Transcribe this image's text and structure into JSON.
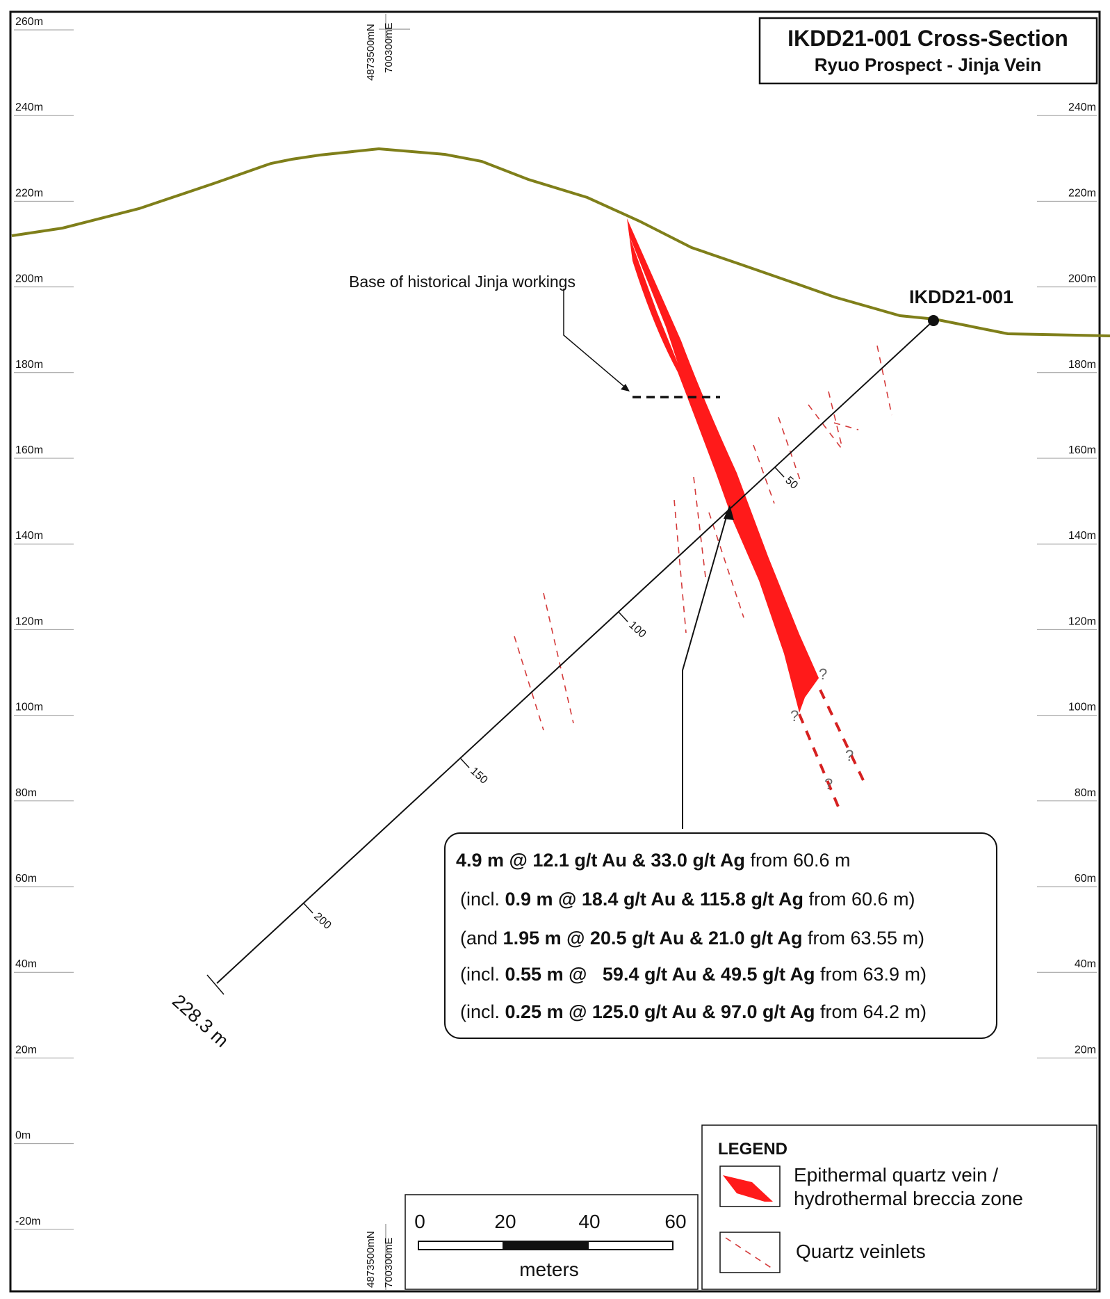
{
  "title": {
    "line1": "IKDD21-001 Cross-Section",
    "line2": "Ryuo Prospect - Jinja Vein"
  },
  "elevations": [
    "260m",
    "240m",
    "220m",
    "200m",
    "180m",
    "160m",
    "140m",
    "120m",
    "100m",
    "80m",
    "60m",
    "40m",
    "20m",
    "0m",
    "-20m"
  ],
  "right_elevations": [
    "240m",
    "220m",
    "200m",
    "180m",
    "160m",
    "140m",
    "120m",
    "100m",
    "80m",
    "60m",
    "40m",
    "20m"
  ],
  "grid_coords": {
    "north": "4873500mN",
    "east": "700300mE"
  },
  "drillhole": {
    "name": "IKDD21-001",
    "depth_ticks": [
      "50",
      "100",
      "150",
      "200"
    ],
    "end_depth": "228.3 m"
  },
  "annotation": "Base of historical Jinja workings",
  "question_mark": "?",
  "results": [
    {
      "pre": "",
      "bold": "4.9 m @ 12.1 g/t Au & 33.0 g/t Ag",
      "post": " from 60.6 m"
    },
    {
      "pre": "(incl.  ",
      "bold": "0.9 m @ 18.4 g/t Au & 115.8 g/t Ag",
      "post": " from 60.6 m)"
    },
    {
      "pre": "(and ",
      "bold": "1.95 m @ 20.5 g/t Au & 21.0 g/t Ag",
      "post": " from 63.55 m)"
    },
    {
      "pre": "(incl. ",
      "bold": "0.55 m @   59.4 g/t Au & 49.5 g/t Ag",
      "post": " from 63.9 m)"
    },
    {
      "pre": "(incl. ",
      "bold": "0.25 m @ 125.0 g/t Au & 97.0 g/t Ag",
      "post": " from 64.2 m)"
    }
  ],
  "legend": {
    "title": "LEGEND",
    "vein_line1": "Epithermal quartz vein /",
    "vein_line2": "hydrothermal breccia zone",
    "veinlets": "Quartz veinlets"
  },
  "scale": {
    "labels": [
      "0",
      "20",
      "40",
      "60"
    ],
    "unit": "meters"
  },
  "colors": {
    "vein": "#ff1a1a",
    "topography": "#7f7f1a",
    "veinlet": "#d43a3a",
    "frame": "#111111"
  }
}
